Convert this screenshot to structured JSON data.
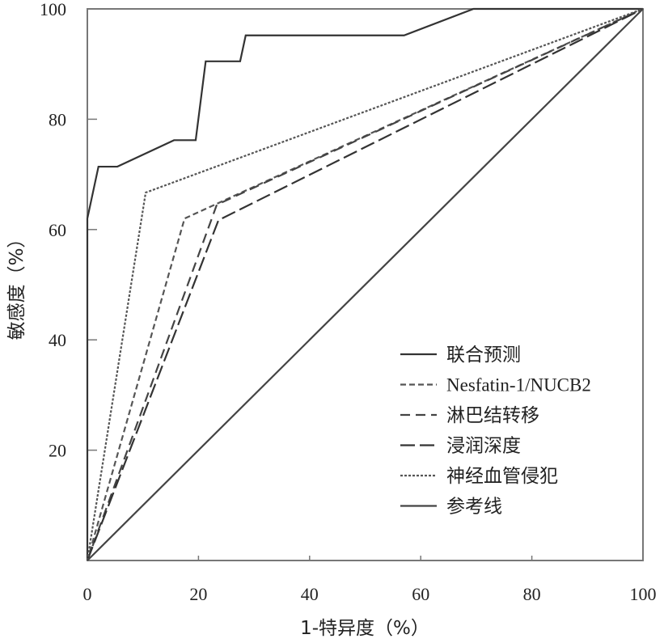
{
  "chart_data": {
    "type": "line",
    "title": "",
    "xlabel": "1-特异度（%）",
    "ylabel": "敏感度（%）",
    "xlim": [
      0,
      100
    ],
    "ylim": [
      0,
      100
    ],
    "xticks": [
      "0",
      "20",
      "40",
      "60",
      "80",
      "100"
    ],
    "yticks": [
      "20",
      "40",
      "60",
      "80",
      "100"
    ],
    "grid": false,
    "legend_position": "bottom-right",
    "series": [
      {
        "name": "联合预测",
        "style": "solid",
        "color": "#333333",
        "x": [
          0,
          0,
          2,
          5.4,
          15.6,
          19.5,
          21.3,
          27.5,
          28.5,
          57,
          69.5,
          100
        ],
        "y": [
          0,
          62,
          71.4,
          71.4,
          76.2,
          76.2,
          90.5,
          90.5,
          95.2,
          95.2,
          100,
          100
        ]
      },
      {
        "name": "Nesfatin-1/NUCB2",
        "style": "short-dash",
        "color": "#555555",
        "x": [
          0,
          17.5,
          100
        ],
        "y": [
          0,
          62,
          100
        ]
      },
      {
        "name": "淋巴结转移",
        "style": "medium-dash",
        "color": "#444444",
        "x": [
          0,
          23.3,
          100
        ],
        "y": [
          0,
          64.5,
          100
        ]
      },
      {
        "name": "浸润深度",
        "style": "long-dash",
        "color": "#333333",
        "x": [
          0,
          23.6,
          100
        ],
        "y": [
          0,
          61.7,
          100
        ]
      },
      {
        "name": "神经血管侵犯",
        "style": "dotted",
        "color": "#555555",
        "x": [
          0,
          10.5,
          100
        ],
        "y": [
          0,
          66.7,
          100
        ]
      },
      {
        "name": "参考线",
        "style": "solid",
        "color": "#444444",
        "x": [
          0,
          100
        ],
        "y": [
          0,
          100
        ]
      }
    ]
  }
}
